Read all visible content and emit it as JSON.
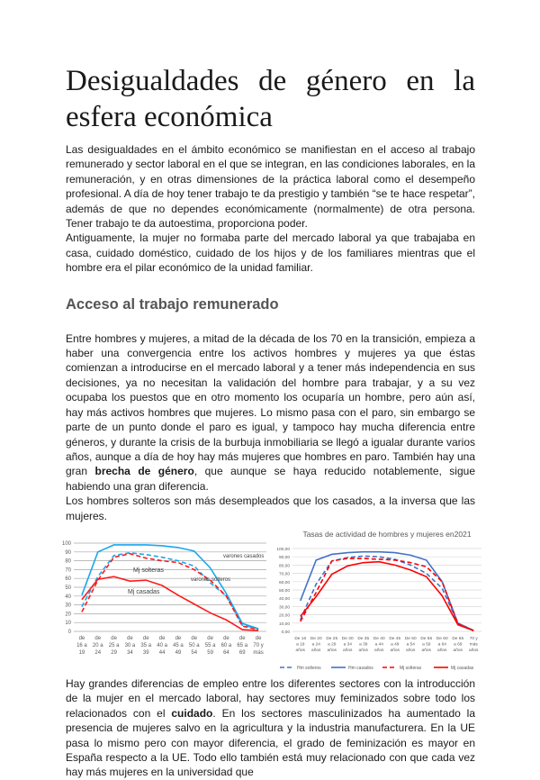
{
  "title": "Desigualdades de género en la esfera económica",
  "intro": {
    "p1": "Las desigualdades en el ámbito económico se manifiestan en el acceso al trabajo remunerado y sector laboral en el que se integran, en las condiciones laborales, en la remuneración, y en otras dimensiones de la práctica laboral como el desempeño profesional. A día de hoy tener trabajo te da prestigio y también “se te hace respetar”, además de que no dependes económicamente (normalmente) de otra persona. Tener trabajo te da autoestima, proporciona poder.",
    "p2": "Antiguamente, la mujer no formaba parte del mercado laboral ya que trabajaba en casa, cuidado doméstico, cuidado de los hijos y de los familiares mientras que el hombre era el pilar económico de la unidad familiar."
  },
  "section_heading": "Acceso al trabajo remunerado",
  "section": {
    "p1_a": "Entre hombres y mujeres, a mitad de la década de los 70 en la transición, empieza a haber una convergencia entre los activos hombres y mujeres ya que éstas comienzan a introducirse en el mercado laboral y a tener más independencia en sus decisiones, ya no necesitan la validación del hombre para trabajar, y a su vez ocupaba los puestos que en otro momento los ocuparía un hombre, pero aún así, hay más activos hombres que mujeres. Lo mismo pasa con el paro, sin embargo se parte de un punto donde el paro es igual, y tampoco hay mucha diferencia entre géneros, y durante la crisis de la burbuja inmobiliaria se llegó a igualar durante varios años, aunque a día de hoy hay más mujeres que hombres en paro. También hay una gran ",
    "p1_bold": "brecha de género",
    "p1_b": ", que aunque se haya reducido notablemente, sigue habiendo una gran diferencia.",
    "p2": "Los hombres solteros son más desempleados que los casados, a la inversa que las mujeres.",
    "p3_a": "Hay grandes diferencias de empleo entre los diferentes sectores con la introducción de la mujer en el mercado laboral, hay sectores muy feminizados sobre todo los relacionados con el ",
    "p3_bold": "cuidado",
    "p3_b": ". En los sectores masculinizados ha aumentado la presencia de mujeres salvo en la agricultura y la industria manufacturera. En la UE pasa lo mismo pero con mayor diferencia, el grado de feminización es mayor en España respecto a la UE. Todo ello también está muy relacionado con que cada vez hay más mujeres en la universidad que"
  },
  "chart_data": [
    {
      "type": "line",
      "title": "",
      "categories": [
        "de 16 a 19",
        "de 20 a 24",
        "de 25 a 29",
        "de 30 a 34",
        "de 35 a 39",
        "de 40 a 44",
        "de 45 a 49",
        "de 50 a 54",
        "de 55 a 59",
        "de 60 a 64",
        "de 65 a 69",
        "de 70 y más"
      ],
      "ylim": [
        0,
        100
      ],
      "yticks": [
        "0",
        "10",
        "20",
        "30",
        "40",
        "50",
        "60",
        "70",
        "80",
        "90",
        "100"
      ],
      "grid": true,
      "series": [
        {
          "name": "varones casados",
          "color": "#1aa7ec",
          "dash": false,
          "values": [
            41,
            90,
            98,
            98,
            98,
            97,
            95,
            91,
            72,
            43,
            9,
            3
          ]
        },
        {
          "name": "varones solteros",
          "color": "#1aa7ec",
          "dash": true,
          "values": [
            28,
            62,
            86,
            89,
            87,
            84,
            80,
            74,
            55,
            40,
            7,
            3
          ]
        },
        {
          "name": "Mj solteras",
          "color": "#ff1a1a",
          "dash": true,
          "values": [
            22,
            58,
            84,
            88,
            83,
            80,
            78,
            70,
            58,
            40,
            6,
            2
          ]
        },
        {
          "name": "Mj casadas",
          "color": "#ff1a1a",
          "dash": false,
          "values": [
            36,
            59,
            62,
            57,
            58,
            52,
            41,
            31,
            21,
            13,
            2,
            1
          ]
        }
      ]
    },
    {
      "type": "line",
      "title": "Tasas de actividad de hombres y mujeres en2021",
      "categories": [
        "De 16 a 19 años",
        "De 20 a 24 años",
        "De 25 a 29 años",
        "De 30 a 34 años",
        "De 35 a 39 años",
        "De 40 a 44 años",
        "De 45 a 49 años",
        "De 50 a 54 años",
        "De 55 a 59 años",
        "De 60 a 64 años",
        "De 65 a 69 años",
        "70 y más años"
      ],
      "ylim": [
        0,
        100
      ],
      "yticks": [
        "0,00",
        "10,00",
        "20,00",
        "30,00",
        "40,00",
        "50,00",
        "60,00",
        "70,00",
        "80,00",
        "90,00",
        "100,00"
      ],
      "grid": true,
      "legend": "bottom",
      "series": [
        {
          "name": "Hm solteros",
          "color": "#4472c4",
          "dash": true,
          "values": [
            14,
            57,
            85,
            89,
            91,
            90,
            87,
            80,
            70,
            52,
            10,
            1
          ]
        },
        {
          "name": "Hm casados",
          "color": "#4472c4",
          "dash": false,
          "values": [
            37,
            86,
            93,
            95,
            96,
            96,
            95,
            92,
            86,
            60,
            10,
            1
          ]
        },
        {
          "name": "Mj solteras",
          "color": "#ff0000",
          "dash": true,
          "values": [
            12,
            47,
            85,
            88,
            88,
            87,
            86,
            83,
            78,
            60,
            9,
            1
          ]
        },
        {
          "name": "Mj casadas",
          "color": "#ff0000",
          "dash": false,
          "values": [
            18,
            42,
            69,
            79,
            83,
            84,
            80,
            74,
            66,
            43,
            8,
            1
          ]
        }
      ]
    }
  ]
}
